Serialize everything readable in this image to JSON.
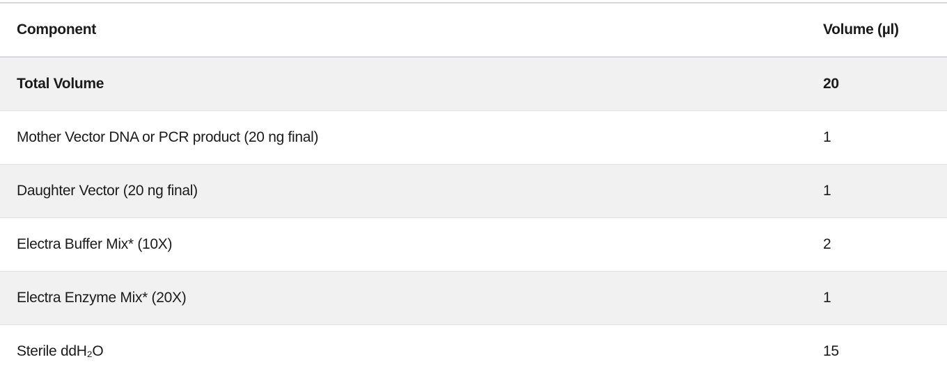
{
  "table": {
    "columns": {
      "component": {
        "label": "Component"
      },
      "volume": {
        "label": "Volume (µl)"
      }
    },
    "rows": [
      {
        "component": "Total Volume",
        "volume": "20",
        "bold": true
      },
      {
        "component": "Mother Vector DNA or PCR product (20 ng final)",
        "volume": "1",
        "bold": false
      },
      {
        "component": "Daughter Vector (20 ng final)",
        "volume": "1",
        "bold": false
      },
      {
        "component": "Electra Buffer Mix* (10X)",
        "volume": "2",
        "bold": false
      },
      {
        "component": "Electra Enzyme Mix* (20X)",
        "volume": "1",
        "bold": false
      },
      {
        "component": "Sterile ddH₂O",
        "volume": "15",
        "bold": false
      }
    ],
    "colors": {
      "stripe_background": "#f1f1f2",
      "header_border": "#d5d8dc",
      "row_border": "#e2e3e5",
      "top_border": "#d8d8d8",
      "text": "#1b1b1b"
    }
  }
}
